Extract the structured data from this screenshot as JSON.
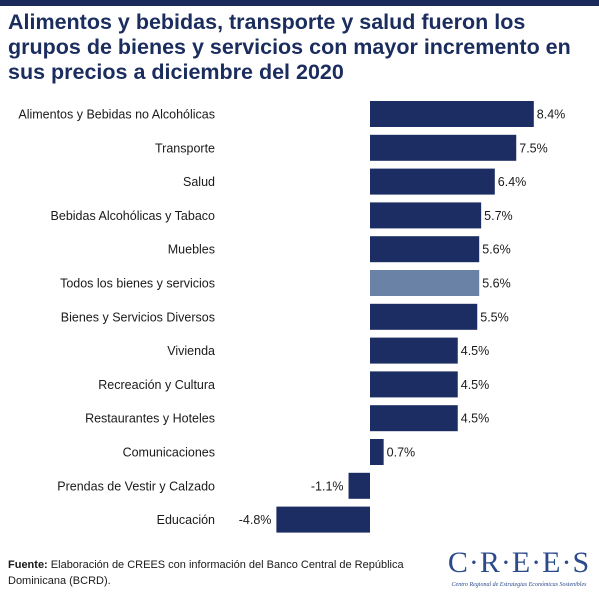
{
  "title": "Alimentos y bebidas, transporte y salud fueron los grupos de bienes y servicios con mayor incremento en sus precios a diciembre del 2020",
  "colors": {
    "bar": "#1b2d62",
    "highlight": "#6a82a6",
    "title": "#1b2d5e",
    "logo": "#2b4a8c"
  },
  "chart_data": {
    "type": "bar",
    "orientation": "horizontal",
    "title": "Alimentos y bebidas, transporte y salud fueron los grupos de bienes y servicios con mayor incremento en sus precios a diciembre del 2020",
    "xlabel": "",
    "ylabel": "",
    "categories": [
      "Alimentos y Bebidas no Alcohólicas",
      "Transporte",
      "Salud",
      "Bebidas Alcohólicas y Tabaco",
      "Muebles",
      "Todos los bienes y servicios",
      "Bienes y Servicios Diversos",
      "Vivienda",
      "Recreación y Cultura",
      "Restaurantes y Hoteles",
      "Comunicaciones",
      "Prendas de Vestir y Calzado",
      "Educación"
    ],
    "values": [
      8.4,
      7.5,
      6.4,
      5.7,
      5.6,
      5.6,
      5.5,
      4.5,
      4.5,
      4.5,
      0.7,
      -1.1,
      -4.8
    ],
    "value_labels": [
      "8.4%",
      "7.5%",
      "6.4%",
      "5.7%",
      "5.6%",
      "5.6%",
      "5.5%",
      "4.5%",
      "4.5%",
      "4.5%",
      "0.7%",
      "-1.1%",
      "-4.8%"
    ],
    "highlight_category": "Todos los bienes y servicios",
    "xlim": [
      -5,
      9
    ],
    "grid": false,
    "legend": "none"
  },
  "footer": {
    "label": "Fuente:",
    "text": " Elaboración de CREES con información del Banco Central de República Dominicana (BCRD)."
  },
  "logo": {
    "wordmark": "CREES",
    "subtitle": "Centro Regional de Estrategias Económicas Sostenibles"
  }
}
